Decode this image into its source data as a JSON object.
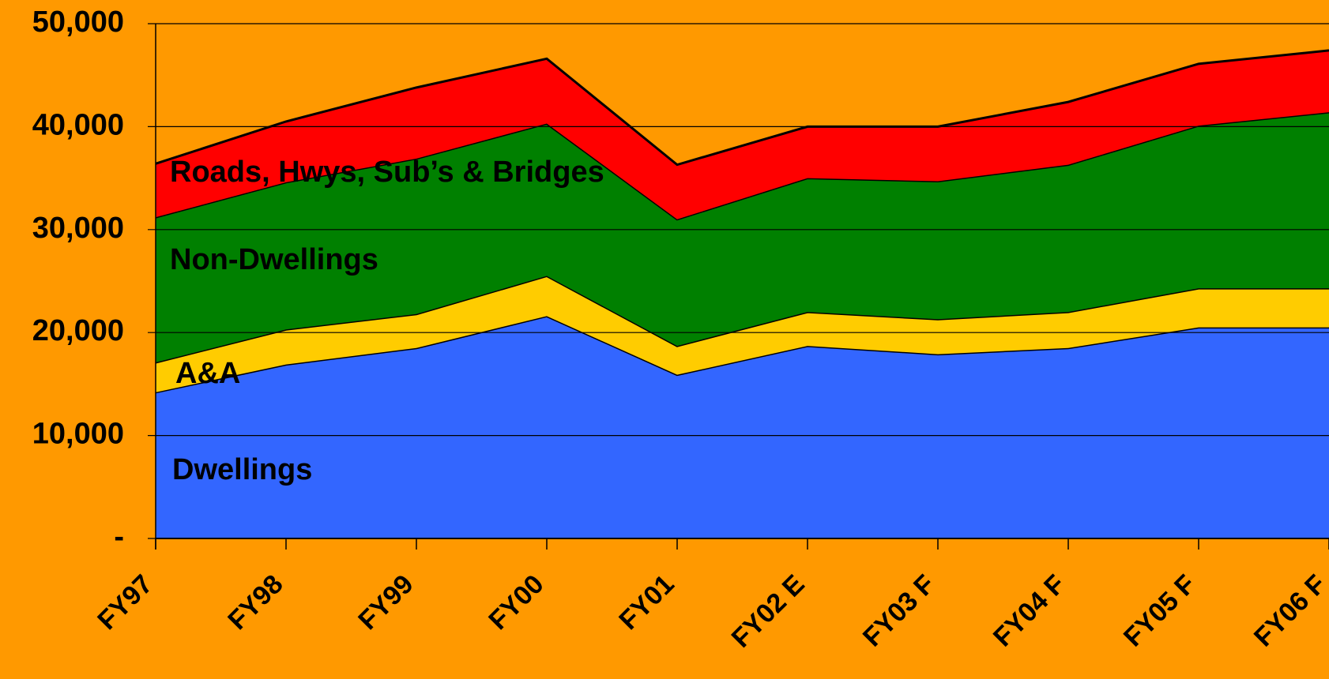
{
  "chart_data": {
    "type": "stacked_area",
    "categories": [
      "FY97",
      "FY98",
      "FY99",
      "FY00",
      "FY01",
      "FY02 E",
      "FY03 F",
      "FY04 F",
      "FY05 F",
      "FY06 F"
    ],
    "series": [
      {
        "name": "Dwellings",
        "color": "#3366FF",
        "values": [
          14200,
          16900,
          18500,
          21600,
          15900,
          18700,
          17900,
          18500,
          20500,
          20500
        ]
      },
      {
        "name": "A&A",
        "color": "#FFCC00",
        "values": [
          2900,
          3400,
          3300,
          3900,
          2800,
          3300,
          3400,
          3500,
          3800,
          3800
        ]
      },
      {
        "name": "Non-Dwellings",
        "color": "#008000",
        "values": [
          14100,
          14300,
          15100,
          14800,
          12300,
          13000,
          13400,
          14300,
          15800,
          17100
        ]
      },
      {
        "name": "Roads, Hwys, Sub’s & Bridges",
        "color": "#FF0000",
        "values": [
          5200,
          5900,
          6900,
          6300,
          5300,
          5000,
          5300,
          6100,
          6000,
          6000
        ]
      }
    ],
    "ylim": [
      0,
      50000
    ],
    "yticks": [
      {
        "value": 0,
        "label": "-"
      },
      {
        "value": 10000,
        "label": "10,000"
      },
      {
        "value": 20000,
        "label": "20,000"
      },
      {
        "value": 30000,
        "label": "30,000"
      },
      {
        "value": 40000,
        "label": "40,000"
      },
      {
        "value": 50000,
        "label": "50,000"
      }
    ],
    "grid": true,
    "background": "#FF9900"
  }
}
